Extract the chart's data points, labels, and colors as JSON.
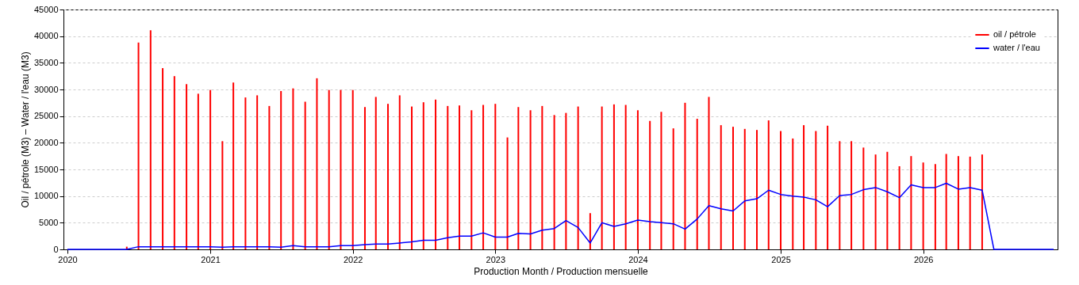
{
  "chart_data": {
    "type": "bar",
    "xlabel": "Production Month / Production mensuelle",
    "ylabel": "Oil / pétrole (M3)  –  Water / l'eau (M3)",
    "x": [
      "2020-06",
      "2020-07",
      "2020-08",
      "2020-09",
      "2020-10",
      "2020-11",
      "2020-12",
      "2021-01",
      "2021-02",
      "2021-03",
      "2021-04",
      "2021-05",
      "2021-06",
      "2021-07",
      "2021-08",
      "2021-09",
      "2021-10",
      "2021-11",
      "2021-12",
      "2022-01",
      "2022-02",
      "2022-03",
      "2022-04",
      "2022-05",
      "2022-06",
      "2022-07",
      "2022-08",
      "2022-09",
      "2022-10",
      "2022-11",
      "2022-12",
      "2023-01",
      "2023-02",
      "2023-03",
      "2023-04",
      "2023-05",
      "2023-06",
      "2023-07",
      "2023-08",
      "2023-09",
      "2023-10",
      "2023-11",
      "2023-12",
      "2024-01",
      "2024-02",
      "2024-03",
      "2024-04",
      "2024-05",
      "2024-06",
      "2024-07",
      "2024-08",
      "2024-09",
      "2024-10",
      "2024-11",
      "2024-12",
      "2025-01",
      "2025-02",
      "2025-03",
      "2025-04",
      "2025-05",
      "2025-06",
      "2025-07",
      "2025-08",
      "2025-09",
      "2025-10",
      "2025-11",
      "2025-12",
      "2026-01",
      "2026-02",
      "2026-03",
      "2026-04",
      "2026-05",
      "2026-06"
    ],
    "series": [
      {
        "name": "oil / pétrole",
        "color": "#ff0000",
        "values": [
          500,
          38800,
          41100,
          34000,
          32500,
          31000,
          29200,
          29900,
          20300,
          31300,
          28500,
          28900,
          26900,
          29700,
          30200,
          27700,
          32100,
          29900,
          29900,
          29900,
          26700,
          28600,
          27300,
          28900,
          26800,
          27600,
          28100,
          26900,
          27000,
          26100,
          27100,
          27300,
          21000,
          26700,
          26100,
          26900,
          25200,
          25600,
          26800,
          6800,
          26800,
          27200,
          27100,
          26100,
          24100,
          25800,
          22700,
          27500,
          24500,
          28600,
          23300,
          23000,
          22600,
          22400,
          24200,
          22200,
          20800,
          23300,
          22200,
          23200,
          20300,
          20300,
          19100,
          17800,
          18300,
          15600,
          17500,
          16300,
          16000,
          17900,
          17500,
          17400,
          17800
        ]
      },
      {
        "name": "water / l'eau",
        "type": "line",
        "color": "#0000ff",
        "x": [
          "2020-01",
          "2020-06",
          "2020-07",
          "2020-08",
          "2020-09",
          "2020-10",
          "2020-11",
          "2020-12",
          "2021-01",
          "2021-02",
          "2021-03",
          "2021-04",
          "2021-05",
          "2021-06",
          "2021-07",
          "2021-08",
          "2021-09",
          "2021-10",
          "2021-11",
          "2021-12",
          "2022-01",
          "2022-02",
          "2022-03",
          "2022-04",
          "2022-05",
          "2022-06",
          "2022-07",
          "2022-08",
          "2022-09",
          "2022-10",
          "2022-11",
          "2022-12",
          "2023-01",
          "2023-02",
          "2023-03",
          "2023-04",
          "2023-05",
          "2023-06",
          "2023-07",
          "2023-08",
          "2023-09",
          "2023-10",
          "2023-11",
          "2023-12",
          "2024-01",
          "2024-02",
          "2024-03",
          "2024-04",
          "2024-05",
          "2024-06",
          "2024-07",
          "2024-08",
          "2024-09",
          "2024-10",
          "2024-11",
          "2024-12",
          "2025-01",
          "2025-02",
          "2025-03",
          "2025-04",
          "2025-05",
          "2025-06",
          "2025-07",
          "2025-08",
          "2025-09",
          "2025-10",
          "2025-11",
          "2025-12",
          "2026-01",
          "2026-02",
          "2026-03",
          "2026-04",
          "2026-05",
          "2026-06",
          "2026-07",
          "2026-12"
        ],
        "values": [
          0,
          0,
          500,
          500,
          500,
          500,
          500,
          500,
          500,
          400,
          500,
          500,
          500,
          500,
          400,
          700,
          500,
          500,
          500,
          700,
          700,
          900,
          1000,
          1000,
          1200,
          1400,
          1700,
          1700,
          2200,
          2500,
          2500,
          3100,
          2300,
          2300,
          3000,
          2900,
          3600,
          3900,
          5400,
          4100,
          1200,
          5000,
          4300,
          4800,
          5500,
          5200,
          5000,
          4800,
          3800,
          5700,
          8200,
          7600,
          7200,
          9100,
          9500,
          11100,
          10300,
          10000,
          9800,
          9300,
          8000,
          10100,
          10300,
          11200,
          11600,
          10800,
          9700,
          12100,
          11600,
          11600,
          12400,
          11300,
          11600,
          11100,
          0,
          0
        ]
      }
    ],
    "xlim": [
      "2020-01",
      "2026-12"
    ],
    "xticks": [
      "2020",
      "2021",
      "2022",
      "2023",
      "2024",
      "2025",
      "2026"
    ],
    "ylim": [
      0,
      45000
    ],
    "yticks": [
      0,
      5000,
      10000,
      15000,
      20000,
      25000,
      30000,
      35000,
      40000,
      45000
    ],
    "grid": "y",
    "legend": "top right"
  }
}
